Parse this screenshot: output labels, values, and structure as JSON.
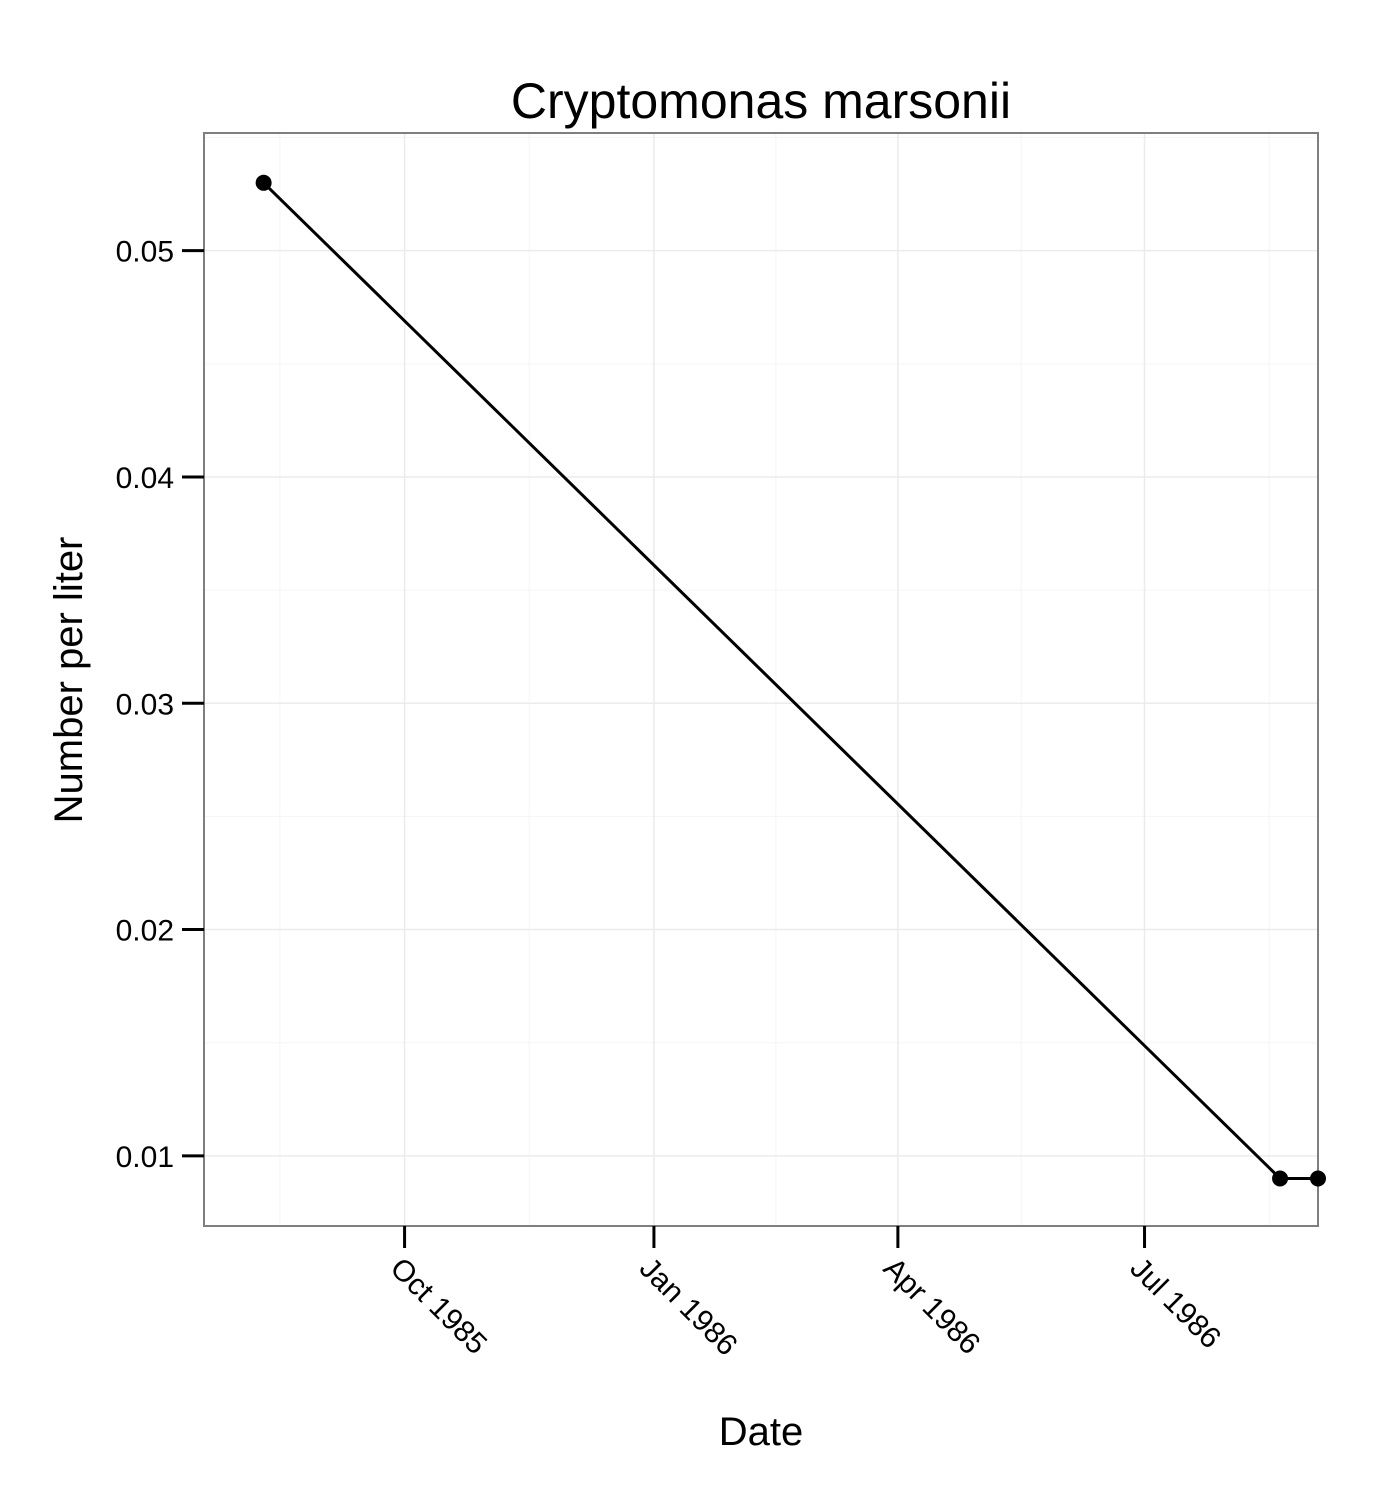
{
  "chart_data": {
    "type": "line",
    "title": "Cryptomonas marsonii",
    "xlabel": "Date",
    "ylabel": "Number per liter",
    "x_axis": {
      "scale": "date",
      "range": [
        "1985-07-19",
        "1986-09-03"
      ],
      "ticks": [
        {
          "value": "1985-10-01",
          "label": "Oct 1985"
        },
        {
          "value": "1986-01-01",
          "label": "Jan 1986"
        },
        {
          "value": "1986-04-01",
          "label": "Apr 1986"
        },
        {
          "value": "1986-07-01",
          "label": "Jul 1986"
        }
      ]
    },
    "y_axis": {
      "range": [
        0.0069,
        0.0552
      ],
      "ticks": [
        {
          "value": 0.01,
          "label": "0.01"
        },
        {
          "value": 0.02,
          "label": "0.02"
        },
        {
          "value": 0.03,
          "label": "0.03"
        },
        {
          "value": 0.04,
          "label": "0.04"
        },
        {
          "value": 0.05,
          "label": "0.05"
        }
      ]
    },
    "series": [
      {
        "points": [
          {
            "x": "1985-08-10",
            "y": 0.053
          },
          {
            "x": "1986-08-20",
            "y": 0.009
          },
          {
            "x": "1986-09-03",
            "y": 0.009
          }
        ]
      }
    ],
    "grid": true,
    "legend": "none",
    "colors": {
      "line": "#000000",
      "points": "#000000",
      "panel_background": "#ffffff",
      "grid_major": "#ebebeb",
      "grid_minor": "#f5f5f5",
      "panel_border": "#7f7f7f"
    }
  }
}
